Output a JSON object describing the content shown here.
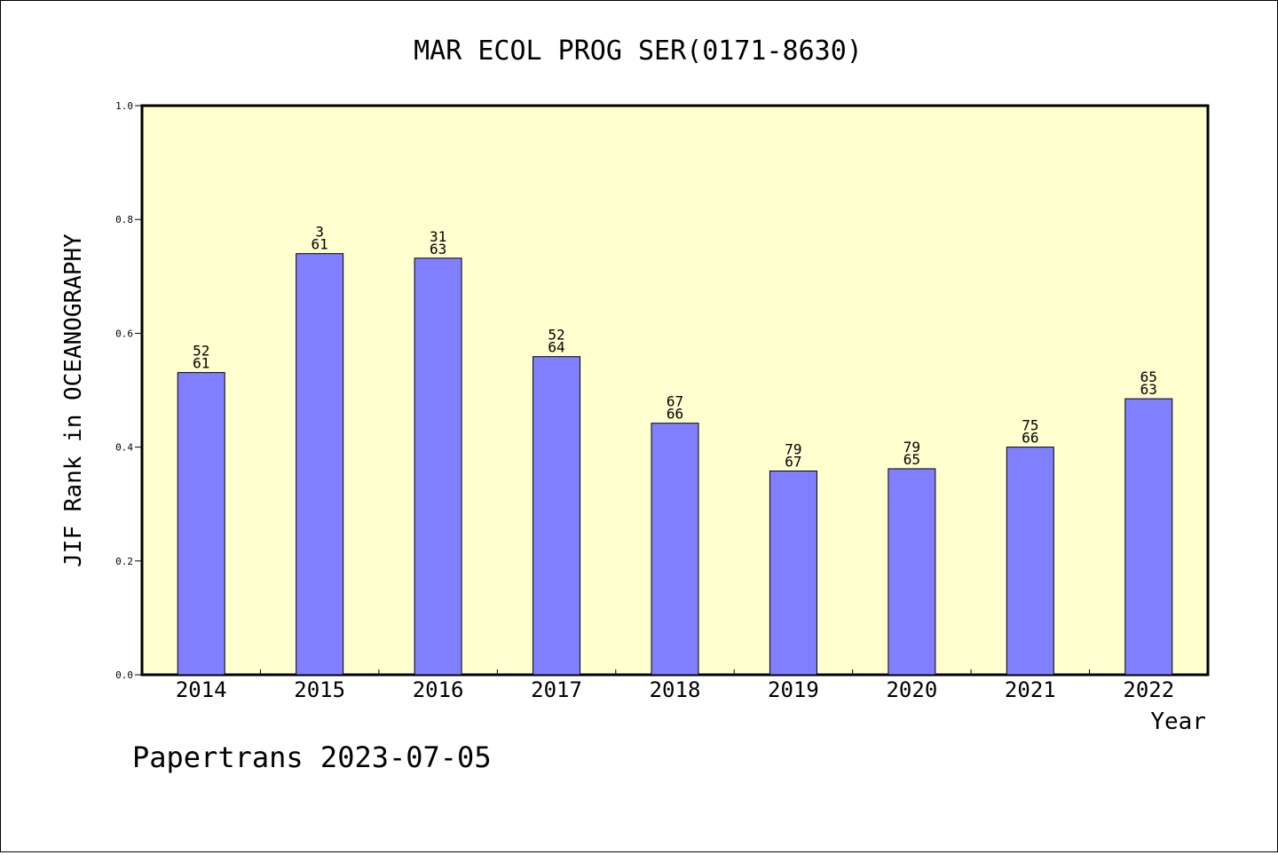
{
  "chart_data": {
    "type": "bar",
    "title": "MAR ECOL PROG SER(0171-8630)",
    "xlabel": "Year",
    "ylabel": "JIF Rank in OCEANOGRAPHY",
    "ylim": [
      0,
      1.0
    ],
    "yticks": [
      "0.0",
      "0.2",
      "0.4",
      "0.6",
      "0.8",
      "1.0"
    ],
    "categories": [
      "2014",
      "2015",
      "2016",
      "2017",
      "2018",
      "2019",
      "2020",
      "2021",
      "2022"
    ],
    "values": [
      0.531,
      0.74,
      0.732,
      0.559,
      0.442,
      0.358,
      0.362,
      0.4,
      0.485
    ],
    "rank_labels": [
      [
        "52",
        "61"
      ],
      [
        "3",
        "61"
      ],
      [
        "31",
        "63"
      ],
      [
        "52",
        "64"
      ],
      [
        "67",
        "66"
      ],
      [
        "79",
        "67"
      ],
      [
        "79",
        "65"
      ],
      [
        "75",
        "66"
      ],
      [
        "65",
        "63"
      ]
    ],
    "grid": false,
    "colors": {
      "plot_background": "#ffffd0",
      "bar_fill": "#8080ff",
      "bar_stroke": "#000000"
    }
  },
  "footer": {
    "credit": "Papertrans 2023-07-05"
  }
}
